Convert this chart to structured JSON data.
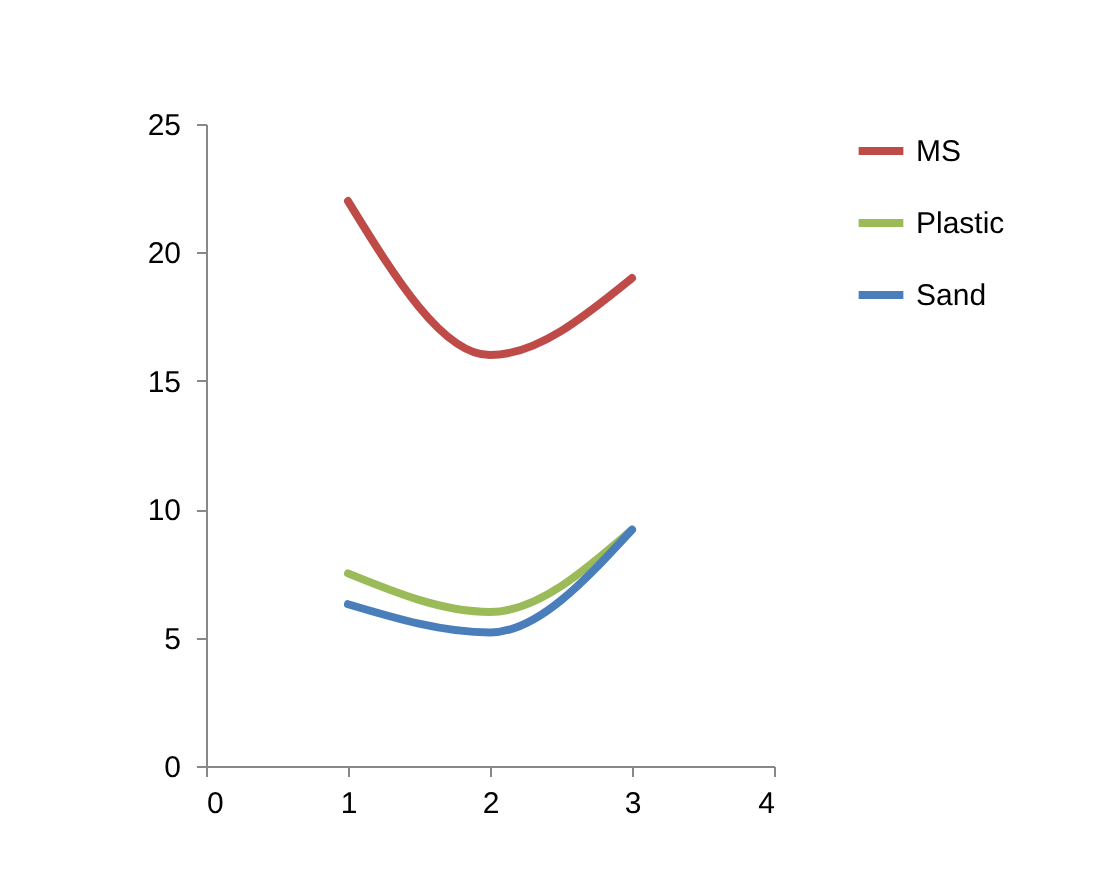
{
  "chart_data": {
    "type": "line",
    "x": [
      1,
      2,
      3
    ],
    "series": [
      {
        "name": "MS",
        "color": "#be4b48",
        "values": [
          22,
          16,
          19
        ]
      },
      {
        "name": "Plastic",
        "color": "#9bbb59",
        "values": [
          7.5,
          6,
          9.2
        ]
      },
      {
        "name": "Sand",
        "color": "#4a7ebb",
        "values": [
          6.3,
          5.2,
          9.2
        ]
      }
    ],
    "xlim": [
      0,
      4
    ],
    "xticks": [
      0,
      1,
      2,
      3,
      4
    ],
    "ylim": [
      0,
      25
    ],
    "yticks": [
      0,
      5,
      10,
      15,
      20,
      25
    ],
    "grid": false,
    "legend": "top right"
  }
}
